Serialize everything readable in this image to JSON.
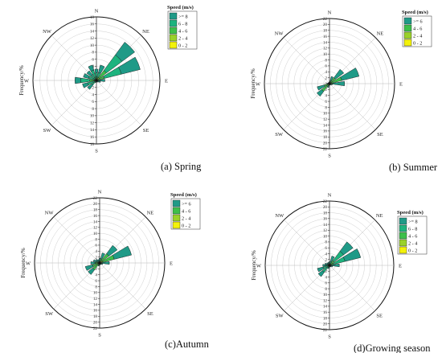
{
  "speed_colors": {
    ">= 8": "#1f9a87",
    ">= 6": "#1f9a87",
    "6 - 8": "#1db37e",
    "4 - 6": "#3dbf4a",
    "2 - 4": "#9ad12a",
    "0 - 2": "#f3f20a"
  },
  "chart_data": [
    {
      "type": "polar",
      "id": "spring",
      "caption": "(a) Spring",
      "ylabel": "Frequency/%",
      "rmax": 18,
      "tick_step": 2,
      "compass_labels": [
        "N",
        "NE",
        "E",
        "SE",
        "S",
        "SW",
        "W",
        "NW"
      ],
      "legend_title": "Speed (m/s)",
      "legend": [
        ">= 8",
        "6 - 8",
        "4 - 6",
        "2 - 4",
        "0 - 2"
      ],
      "directions": [
        "N",
        "NNE",
        "NE",
        "ENE",
        "E",
        "ESE",
        "SE",
        "SSE",
        "S",
        "SSW",
        "SW",
        "WSW",
        "W",
        "WNW",
        "NW",
        "NNW"
      ],
      "bins": [
        [
          1.0,
          1.2,
          0.8,
          0.2,
          0
        ],
        [
          2.2,
          1.5,
          0.6,
          0.2,
          0
        ],
        [
          4.5,
          5.5,
          2.5,
          0.8,
          0.2
        ],
        [
          5.5,
          5.0,
          1.8,
          0.5,
          0
        ],
        [
          1.4,
          0.8,
          0.2,
          0,
          0
        ],
        [
          0.8,
          0.4,
          0,
          0,
          0
        ],
        [
          0.5,
          0.2,
          0,
          0,
          0
        ],
        [
          0.4,
          0.1,
          0,
          0,
          0
        ],
        [
          0.3,
          0.1,
          0,
          0,
          0
        ],
        [
          0.5,
          0.2,
          0,
          0,
          0
        ],
        [
          1.5,
          1.2,
          0.5,
          0,
          0
        ],
        [
          1.5,
          2.0,
          0.6,
          0,
          0
        ],
        [
          1.6,
          2.6,
          1.3,
          0.6,
          0
        ],
        [
          1.5,
          1.8,
          0.5,
          0,
          0
        ],
        [
          1.5,
          1.4,
          0.5,
          0,
          0
        ],
        [
          1.5,
          2.2,
          0.7,
          0.1,
          0
        ]
      ]
    },
    {
      "type": "polar",
      "id": "summer",
      "caption": "(b) Summer",
      "ylabel": "Frequency/%",
      "rmax": 22,
      "tick_step": 2,
      "compass_labels": [
        "N",
        "NE",
        "E",
        "SE",
        "S",
        "SW",
        "W",
        "NW"
      ],
      "legend_title": "Speed (m/s)",
      "legend": [
        ">= 6",
        "4 - 6",
        "2 - 4",
        "0 - 2"
      ],
      "directions": [
        "N",
        "NNE",
        "NE",
        "ENE",
        "E",
        "ESE",
        "SE",
        "SSE",
        "S",
        "SSW",
        "SW",
        "WSW",
        "W",
        "WNW",
        "NW",
        "NNW"
      ],
      "bins": [
        [
          0.6,
          0.2,
          0,
          0
        ],
        [
          1.5,
          0.8,
          0.2,
          0
        ],
        [
          3.5,
          2.0,
          0.5,
          0
        ],
        [
          6.0,
          3.5,
          0.8,
          0
        ],
        [
          4.0,
          1.0,
          0.1,
          0
        ],
        [
          0.8,
          0.2,
          0,
          0
        ],
        [
          0.5,
          0.1,
          0,
          0
        ],
        [
          0.4,
          0.1,
          0,
          0
        ],
        [
          0.5,
          0.1,
          0,
          0
        ],
        [
          1.0,
          0.4,
          0,
          0
        ],
        [
          2.0,
          2.5,
          0.8,
          0
        ],
        [
          2.5,
          1.5,
          0.3,
          0
        ],
        [
          0.6,
          0.3,
          0,
          0
        ],
        [
          0.4,
          0.2,
          0,
          0
        ],
        [
          0.3,
          0.1,
          0,
          0
        ],
        [
          0.4,
          0.1,
          0,
          0
        ]
      ]
    },
    {
      "type": "polar",
      "id": "autumn",
      "caption": "(c)Autumn",
      "ylabel": "Frequency/%",
      "rmax": 22,
      "tick_step": 2,
      "compass_labels": [
        "N",
        "NE",
        "E",
        "SE",
        "S",
        "SW",
        "W",
        "NW"
      ],
      "legend_title": "Speed (m/s)",
      "legend": [
        ">= 6",
        "4 - 6",
        "2 - 4",
        "0 - 2"
      ],
      "directions": [
        "N",
        "NNE",
        "NE",
        "ENE",
        "E",
        "ESE",
        "SE",
        "SSE",
        "S",
        "SSW",
        "SW",
        "WSW",
        "W",
        "WNW",
        "NW",
        "NNW"
      ],
      "bins": [
        [
          1.0,
          0.5,
          0.1,
          0
        ],
        [
          2.0,
          1.2,
          0.3,
          0
        ],
        [
          3.5,
          3.0,
          0.8,
          0.1
        ],
        [
          6.0,
          4.0,
          1.0,
          0.1
        ],
        [
          2.5,
          0.8,
          0,
          0
        ],
        [
          0.8,
          0.3,
          0,
          0
        ],
        [
          0.5,
          0.2,
          0,
          0
        ],
        [
          0.5,
          0.1,
          0,
          0
        ],
        [
          0.6,
          0.2,
          0,
          0
        ],
        [
          0.8,
          0.3,
          0,
          0
        ],
        [
          2.0,
          2.2,
          0.7,
          0
        ],
        [
          2.5,
          2.0,
          0.5,
          0
        ],
        [
          1.5,
          1.2,
          0.3,
          0
        ],
        [
          1.2,
          0.8,
          0.2,
          0
        ],
        [
          1.0,
          0.5,
          0.1,
          0
        ],
        [
          0.8,
          0.4,
          0,
          0
        ]
      ]
    },
    {
      "type": "polar",
      "id": "growing",
      "caption": "(d)Growing season",
      "ylabel": "Frequency/%",
      "rmax": 22,
      "tick_step": 2,
      "compass_labels": [
        "N",
        "NE",
        "E",
        "SE",
        "S",
        "SW",
        "W",
        "NW"
      ],
      "legend_title": "Speed (m/s)",
      "legend": [
        ">= 8",
        "6 - 8",
        "4 - 6",
        "2 - 4",
        "0 - 2"
      ],
      "directions": [
        "N",
        "NNE",
        "NE",
        "ENE",
        "E",
        "ESE",
        "SE",
        "SSE",
        "S",
        "SSW",
        "SW",
        "WSW",
        "W",
        "WNW",
        "NW",
        "NNW"
      ],
      "bins": [
        [
          0.8,
          0.4,
          0.1,
          0,
          0
        ],
        [
          1.8,
          1.2,
          0.3,
          0,
          0
        ],
        [
          4.0,
          4.0,
          1.5,
          0.4,
          0.1
        ],
        [
          5.5,
          4.0,
          1.2,
          0.3,
          0
        ],
        [
          2.5,
          0.8,
          0.1,
          0,
          0
        ],
        [
          0.8,
          0.3,
          0,
          0,
          0
        ],
        [
          0.5,
          0.2,
          0,
          0,
          0
        ],
        [
          0.4,
          0.1,
          0,
          0,
          0
        ],
        [
          0.5,
          0.2,
          0,
          0,
          0
        ],
        [
          0.8,
          0.4,
          0,
          0,
          0
        ],
        [
          1.8,
          2.2,
          0.8,
          0,
          0
        ],
        [
          2.0,
          1.8,
          0.5,
          0,
          0
        ],
        [
          1.0,
          1.0,
          0.3,
          0,
          0
        ],
        [
          0.8,
          0.6,
          0.2,
          0,
          0
        ],
        [
          0.6,
          0.4,
          0.1,
          0,
          0
        ],
        [
          0.6,
          0.4,
          0.1,
          0,
          0
        ]
      ]
    }
  ]
}
